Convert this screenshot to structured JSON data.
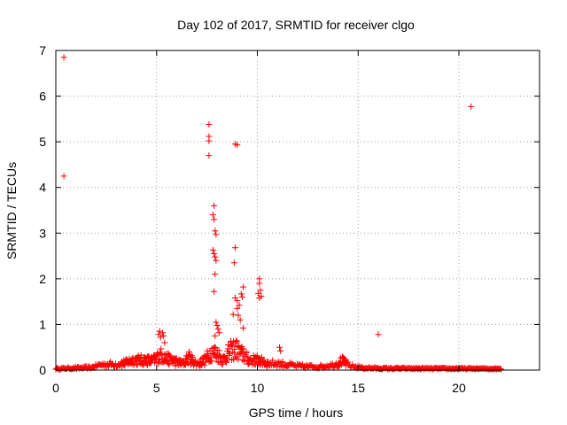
{
  "chart_data": {
    "type": "scatter",
    "title": "Day 102 of 2017, SRMTID for receiver clgo",
    "xlabel": "GPS time / hours",
    "ylabel": "SRMTID / TECUs",
    "xlim": [
      0,
      24
    ],
    "ylim": [
      0,
      7
    ],
    "xticks": [
      0,
      5,
      10,
      15,
      20
    ],
    "yticks": [
      0,
      1,
      2,
      3,
      4,
      5,
      6,
      7
    ],
    "grid": true,
    "marker": "+",
    "color": "#ff0000",
    "series": [
      {
        "name": "SRMTID",
        "points": [
          [
            0.4,
            6.85
          ],
          [
            0.4,
            4.25
          ],
          [
            7.6,
            5.38
          ],
          [
            7.6,
            5.12
          ],
          [
            7.6,
            5.02
          ],
          [
            7.6,
            4.7
          ],
          [
            8.9,
            4.95
          ],
          [
            9.0,
            4.93
          ],
          [
            20.6,
            5.77
          ],
          [
            16.0,
            0.78
          ],
          [
            7.85,
            3.6
          ],
          [
            7.8,
            3.4
          ],
          [
            7.85,
            3.3
          ],
          [
            7.9,
            3.05
          ],
          [
            7.95,
            2.97
          ],
          [
            7.8,
            2.63
          ],
          [
            7.85,
            2.55
          ],
          [
            7.9,
            2.48
          ],
          [
            7.95,
            2.4
          ],
          [
            7.9,
            2.1
          ],
          [
            7.85,
            1.72
          ],
          [
            8.9,
            2.68
          ],
          [
            8.85,
            2.35
          ],
          [
            8.9,
            1.58
          ],
          [
            9.0,
            1.52
          ],
          [
            9.1,
            1.42
          ],
          [
            9.2,
            1.67
          ],
          [
            9.3,
            1.82
          ],
          [
            9.25,
            1.6
          ],
          [
            9.05,
            1.2
          ],
          [
            9.15,
            1.1
          ],
          [
            9.3,
            0.92
          ],
          [
            8.8,
            1.22
          ],
          [
            9.0,
            1.35
          ],
          [
            10.1,
            2.0
          ],
          [
            10.1,
            1.9
          ],
          [
            10.15,
            1.75
          ],
          [
            10.05,
            1.68
          ],
          [
            10.2,
            1.62
          ],
          [
            10.1,
            1.58
          ],
          [
            7.95,
            1.05
          ],
          [
            8.0,
            0.98
          ],
          [
            8.05,
            0.9
          ],
          [
            8.1,
            0.82
          ],
          [
            7.9,
            0.75
          ],
          [
            5.1,
            0.78
          ],
          [
            5.15,
            0.85
          ],
          [
            5.2,
            0.72
          ],
          [
            5.3,
            0.82
          ],
          [
            5.35,
            0.75
          ],
          [
            5.4,
            0.6
          ],
          [
            11.1,
            0.5
          ],
          [
            11.15,
            0.42
          ]
        ],
        "baseline": {
          "x_start": 0,
          "x_end": 22.1,
          "x_step": 0.045,
          "envelope": [
            [
              0,
              0.04
            ],
            [
              1.0,
              0.06
            ],
            [
              1.8,
              0.08
            ],
            [
              2.2,
              0.16
            ],
            [
              3.0,
              0.18
            ],
            [
              3.5,
              0.22
            ],
            [
              3.8,
              0.3
            ],
            [
              4.3,
              0.3
            ],
            [
              4.8,
              0.28
            ],
            [
              5.2,
              0.45
            ],
            [
              5.5,
              0.35
            ],
            [
              5.8,
              0.28
            ],
            [
              6.3,
              0.2
            ],
            [
              6.6,
              0.38
            ],
            [
              7.0,
              0.18
            ],
            [
              7.4,
              0.3
            ],
            [
              7.7,
              0.55
            ],
            [
              8.0,
              0.5
            ],
            [
              8.3,
              0.3
            ],
            [
              8.6,
              0.55
            ],
            [
              8.9,
              0.65
            ],
            [
              9.3,
              0.45
            ],
            [
              9.6,
              0.3
            ],
            [
              10.0,
              0.3
            ],
            [
              10.5,
              0.2
            ],
            [
              11.0,
              0.2
            ],
            [
              12.0,
              0.12
            ],
            [
              13.0,
              0.1
            ],
            [
              13.8,
              0.15
            ],
            [
              14.2,
              0.28
            ],
            [
              14.6,
              0.12
            ],
            [
              15.2,
              0.07
            ],
            [
              16.0,
              0.05
            ],
            [
              22.1,
              0.04
            ]
          ]
        }
      }
    ]
  }
}
